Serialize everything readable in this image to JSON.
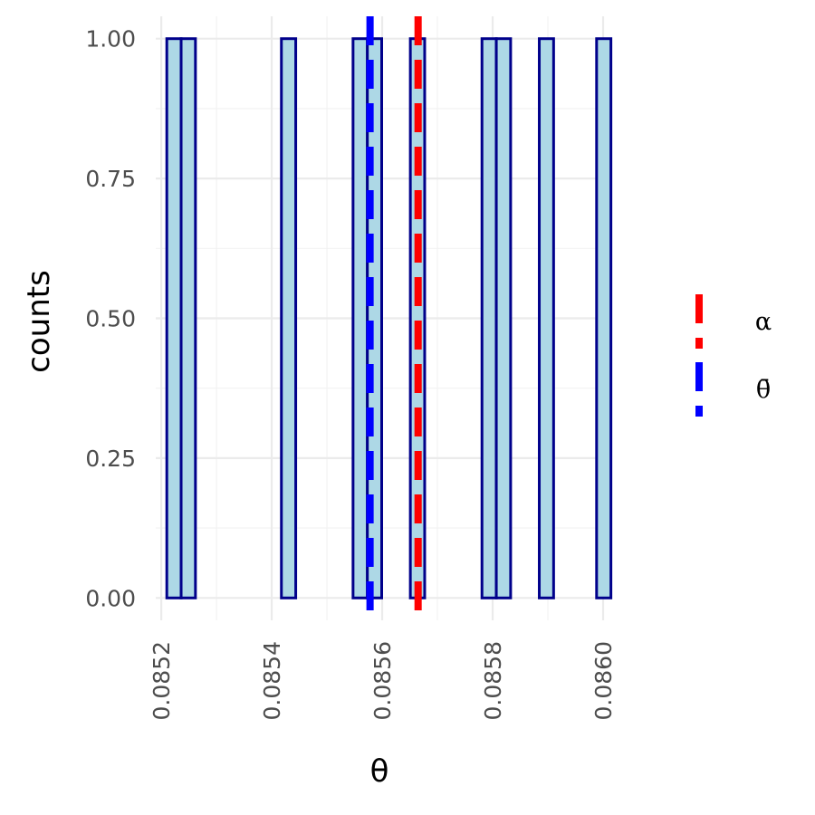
{
  "chart_data": {
    "type": "bar",
    "xlabel": "θ",
    "ylabel": "counts",
    "xlim": [
      0.08519,
      0.086
    ],
    "ylim": [
      -0.04,
      1.04
    ],
    "x_ticks": [
      0.0852,
      0.0854,
      0.0856,
      0.0858,
      0.086
    ],
    "x_tick_labels": [
      "0.0852",
      "0.0854",
      "0.0856",
      "0.0858",
      "0.0860"
    ],
    "y_ticks": [
      0,
      0.25,
      0.5,
      0.75,
      1
    ],
    "y_tick_labels": [
      "0.00",
      "0.25",
      "0.50",
      "0.75",
      "1.00"
    ],
    "grid": true,
    "bin_width": 2.594e-05,
    "bin_start": 0.08521,
    "counts": [
      1,
      1,
      0,
      0,
      0,
      0,
      0,
      0,
      1,
      0,
      0,
      0,
      0,
      1,
      1,
      0,
      0,
      1,
      0,
      0,
      0,
      0,
      1,
      1,
      0,
      0,
      1,
      0,
      0,
      0,
      1
    ],
    "bar_fill": "#add8e6",
    "bar_outline": "#00008b",
    "vlines": [
      {
        "name": "α",
        "x": 0.085665,
        "color": "#ff0000",
        "style": "dashed"
      },
      {
        "name": "θ̄",
        "x": 0.085578,
        "color": "#0000ff",
        "style": "dashed"
      }
    ],
    "legend": {
      "position": "right",
      "entries": [
        {
          "label": "α",
          "color": "#ff0000"
        },
        {
          "label": "θ̄",
          "color": "#0000ff"
        }
      ]
    }
  }
}
